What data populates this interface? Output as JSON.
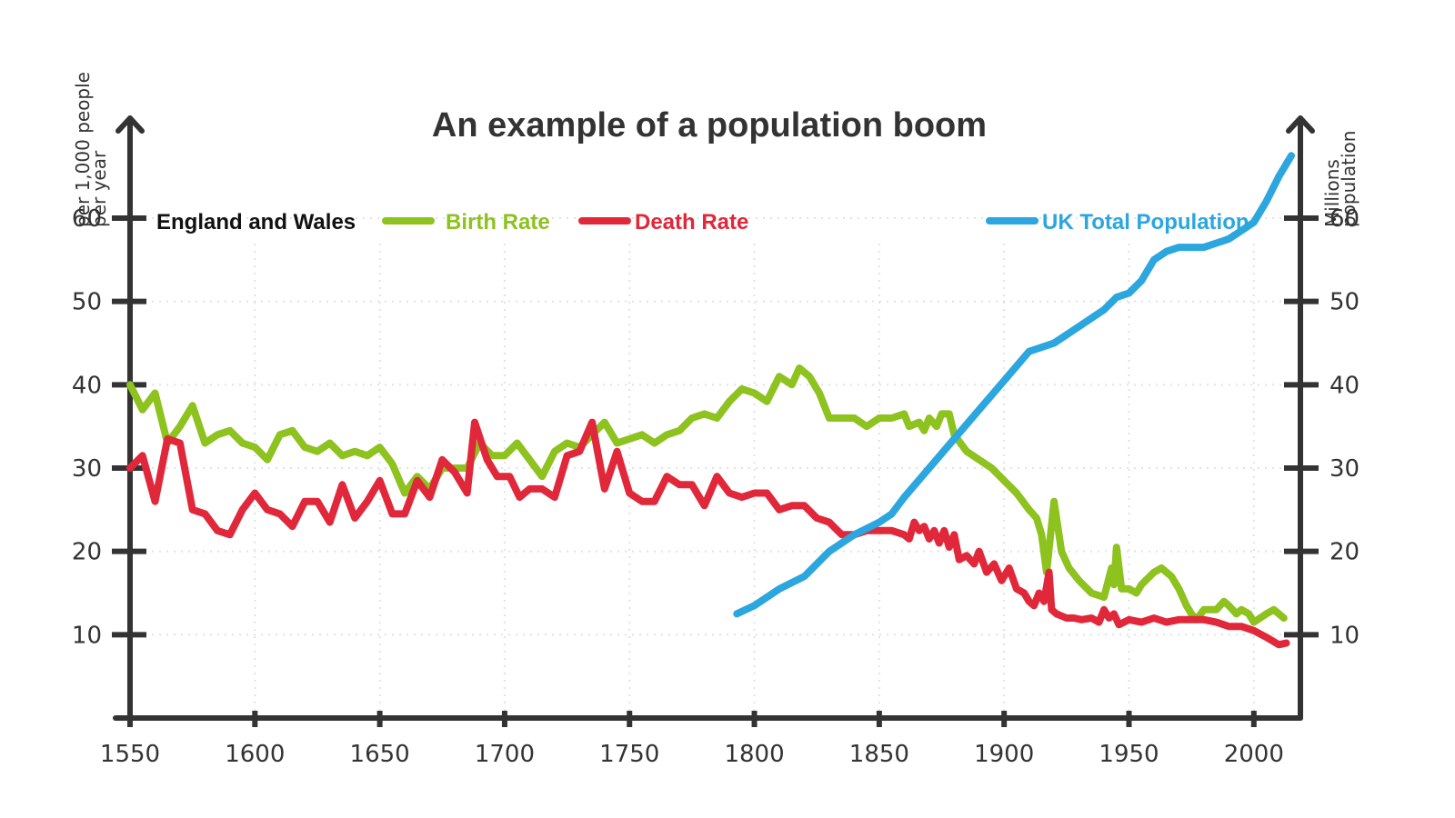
{
  "chart_data": {
    "type": "line",
    "title": "An example of a population boom",
    "xlabel": "",
    "ylabel_left": [
      "per 1,000 people",
      "per year"
    ],
    "ylabel_right": [
      "Millions",
      "population"
    ],
    "xlim": [
      1550,
      2015
    ],
    "ylim_left": [
      0,
      72
    ],
    "ylim_right": [
      0,
      72
    ],
    "x_ticks": [
      1550,
      1600,
      1650,
      1700,
      1750,
      1800,
      1850,
      1900,
      1950,
      2000
    ],
    "y_ticks_left": [
      10,
      20,
      30,
      40,
      50,
      60
    ],
    "y_ticks_right": [
      10,
      20,
      30,
      40,
      50,
      60
    ],
    "grid": true,
    "legend_group_label": "England and Wales",
    "series": [
      {
        "name": "Birth Rate",
        "axis": "left",
        "color": "#8dc21f",
        "points": [
          [
            1550,
            40
          ],
          [
            1555,
            37
          ],
          [
            1560,
            39
          ],
          [
            1565,
            33
          ],
          [
            1570,
            35
          ],
          [
            1575,
            37.5
          ],
          [
            1580,
            33
          ],
          [
            1585,
            34
          ],
          [
            1590,
            34.5
          ],
          [
            1595,
            33
          ],
          [
            1600,
            32.5
          ],
          [
            1605,
            31
          ],
          [
            1610,
            34
          ],
          [
            1615,
            34.5
          ],
          [
            1620,
            32.5
          ],
          [
            1625,
            32
          ],
          [
            1630,
            33
          ],
          [
            1635,
            31.5
          ],
          [
            1640,
            32
          ],
          [
            1645,
            31.5
          ],
          [
            1650,
            32.5
          ],
          [
            1655,
            30.5
          ],
          [
            1660,
            27
          ],
          [
            1665,
            29
          ],
          [
            1670,
            27.5
          ],
          [
            1675,
            30
          ],
          [
            1680,
            30
          ],
          [
            1685,
            30
          ],
          [
            1690,
            33
          ],
          [
            1695,
            31.5
          ],
          [
            1700,
            31.5
          ],
          [
            1705,
            33
          ],
          [
            1710,
            31
          ],
          [
            1715,
            29
          ],
          [
            1720,
            32
          ],
          [
            1725,
            33
          ],
          [
            1730,
            32.5
          ],
          [
            1735,
            34
          ],
          [
            1740,
            35.5
          ],
          [
            1745,
            33
          ],
          [
            1750,
            33.5
          ],
          [
            1755,
            34
          ],
          [
            1760,
            33
          ],
          [
            1765,
            34
          ],
          [
            1770,
            34.5
          ],
          [
            1775,
            36
          ],
          [
            1780,
            36.5
          ],
          [
            1785,
            36
          ],
          [
            1790,
            38
          ],
          [
            1795,
            39.5
          ],
          [
            1800,
            39
          ],
          [
            1805,
            38
          ],
          [
            1810,
            41
          ],
          [
            1815,
            40
          ],
          [
            1818,
            42
          ],
          [
            1822,
            41
          ],
          [
            1826,
            39
          ],
          [
            1830,
            36
          ],
          [
            1835,
            36
          ],
          [
            1840,
            36
          ],
          [
            1845,
            35
          ],
          [
            1850,
            36
          ],
          [
            1855,
            36
          ],
          [
            1860,
            36.5
          ],
          [
            1862,
            35
          ],
          [
            1866,
            35.5
          ],
          [
            1868,
            34.5
          ],
          [
            1870,
            36
          ],
          [
            1873,
            35
          ],
          [
            1875,
            36.5
          ],
          [
            1878,
            36.5
          ],
          [
            1880,
            34
          ],
          [
            1885,
            32
          ],
          [
            1890,
            31
          ],
          [
            1895,
            30
          ],
          [
            1900,
            28.5
          ],
          [
            1905,
            27
          ],
          [
            1910,
            25
          ],
          [
            1913,
            24
          ],
          [
            1915,
            22
          ],
          [
            1917,
            17.5
          ],
          [
            1920,
            26
          ],
          [
            1923,
            20
          ],
          [
            1926,
            18
          ],
          [
            1930,
            16.5
          ],
          [
            1935,
            15
          ],
          [
            1940,
            14.5
          ],
          [
            1943,
            18
          ],
          [
            1944,
            16
          ],
          [
            1945,
            20.5
          ],
          [
            1947,
            15.5
          ],
          [
            1950,
            15.5
          ],
          [
            1953,
            15
          ],
          [
            1955,
            16
          ],
          [
            1960,
            17.5
          ],
          [
            1963,
            18
          ],
          [
            1967,
            17
          ],
          [
            1970,
            15.5
          ],
          [
            1973,
            13.5
          ],
          [
            1975,
            12.5
          ],
          [
            1977,
            11.8
          ],
          [
            1980,
            13
          ],
          [
            1985,
            13
          ],
          [
            1988,
            14
          ],
          [
            1990,
            13.5
          ],
          [
            1993,
            12.5
          ],
          [
            1995,
            13
          ],
          [
            1998,
            12.5
          ],
          [
            2000,
            11.5
          ],
          [
            2005,
            12.5
          ],
          [
            2008,
            13
          ],
          [
            2012,
            12
          ]
        ]
      },
      {
        "name": "Death Rate",
        "axis": "left",
        "color": "#e0283a",
        "points": [
          [
            1550,
            30
          ],
          [
            1555,
            31.5
          ],
          [
            1560,
            26
          ],
          [
            1565,
            33.5
          ],
          [
            1570,
            33
          ],
          [
            1575,
            25
          ],
          [
            1580,
            24.5
          ],
          [
            1585,
            22.5
          ],
          [
            1590,
            22
          ],
          [
            1595,
            25
          ],
          [
            1600,
            27
          ],
          [
            1605,
            25
          ],
          [
            1610,
            24.5
          ],
          [
            1615,
            23
          ],
          [
            1620,
            26
          ],
          [
            1625,
            26
          ],
          [
            1630,
            23.5
          ],
          [
            1635,
            28
          ],
          [
            1640,
            24
          ],
          [
            1645,
            26
          ],
          [
            1650,
            28.5
          ],
          [
            1655,
            24.5
          ],
          [
            1660,
            24.5
          ],
          [
            1665,
            28.5
          ],
          [
            1670,
            26.5
          ],
          [
            1675,
            31
          ],
          [
            1680,
            29.5
          ],
          [
            1685,
            27
          ],
          [
            1688,
            35.5
          ],
          [
            1693,
            31
          ],
          [
            1697,
            29
          ],
          [
            1702,
            29
          ],
          [
            1706,
            26.5
          ],
          [
            1710,
            27.5
          ],
          [
            1715,
            27.5
          ],
          [
            1720,
            26.5
          ],
          [
            1725,
            31.5
          ],
          [
            1730,
            32
          ],
          [
            1735,
            35.5
          ],
          [
            1740,
            27.5
          ],
          [
            1745,
            32
          ],
          [
            1750,
            27
          ],
          [
            1755,
            26
          ],
          [
            1760,
            26
          ],
          [
            1765,
            29
          ],
          [
            1770,
            28
          ],
          [
            1775,
            28
          ],
          [
            1780,
            25.5
          ],
          [
            1785,
            29
          ],
          [
            1790,
            27
          ],
          [
            1795,
            26.5
          ],
          [
            1800,
            27
          ],
          [
            1805,
            27
          ],
          [
            1810,
            25
          ],
          [
            1815,
            25.5
          ],
          [
            1820,
            25.5
          ],
          [
            1825,
            24
          ],
          [
            1830,
            23.5
          ],
          [
            1835,
            22
          ],
          [
            1840,
            22
          ],
          [
            1845,
            22.5
          ],
          [
            1850,
            22.5
          ],
          [
            1855,
            22.5
          ],
          [
            1860,
            22
          ],
          [
            1862,
            21.5
          ],
          [
            1864,
            23.5
          ],
          [
            1866,
            22.5
          ],
          [
            1868,
            23
          ],
          [
            1870,
            21.5
          ],
          [
            1872,
            22.5
          ],
          [
            1874,
            21
          ],
          [
            1876,
            22.5
          ],
          [
            1878,
            20.5
          ],
          [
            1880,
            22
          ],
          [
            1882,
            19
          ],
          [
            1885,
            19.5
          ],
          [
            1888,
            18.5
          ],
          [
            1890,
            20
          ],
          [
            1893,
            17.5
          ],
          [
            1896,
            18.5
          ],
          [
            1899,
            16.5
          ],
          [
            1902,
            18
          ],
          [
            1905,
            15.5
          ],
          [
            1908,
            15
          ],
          [
            1910,
            14
          ],
          [
            1912,
            13.5
          ],
          [
            1914,
            15
          ],
          [
            1916,
            14
          ],
          [
            1918,
            17.5
          ],
          [
            1919,
            13
          ],
          [
            1921,
            12.5
          ],
          [
            1925,
            12
          ],
          [
            1928,
            12
          ],
          [
            1931,
            11.8
          ],
          [
            1935,
            12
          ],
          [
            1938,
            11.5
          ],
          [
            1940,
            13
          ],
          [
            1942,
            12
          ],
          [
            1944,
            12.5
          ],
          [
            1946,
            11.2
          ],
          [
            1950,
            11.8
          ],
          [
            1955,
            11.5
          ],
          [
            1960,
            12
          ],
          [
            1965,
            11.5
          ],
          [
            1970,
            11.8
          ],
          [
            1975,
            11.8
          ],
          [
            1980,
            11.8
          ],
          [
            1985,
            11.5
          ],
          [
            1990,
            11
          ],
          [
            1995,
            11
          ],
          [
            2000,
            10.5
          ],
          [
            2005,
            9.7
          ],
          [
            2010,
            8.8
          ],
          [
            2013,
            9
          ]
        ]
      },
      {
        "name": "UK Total Population",
        "axis": "right",
        "color": "#2ba6de",
        "points": [
          [
            1793,
            12.5
          ],
          [
            1800,
            13.5
          ],
          [
            1810,
            15.5
          ],
          [
            1820,
            17
          ],
          [
            1830,
            20
          ],
          [
            1840,
            22
          ],
          [
            1850,
            23.5
          ],
          [
            1855,
            24.5
          ],
          [
            1860,
            26.5
          ],
          [
            1870,
            30
          ],
          [
            1880,
            33.5
          ],
          [
            1890,
            37
          ],
          [
            1900,
            40.5
          ],
          [
            1910,
            44
          ],
          [
            1915,
            44.5
          ],
          [
            1920,
            45
          ],
          [
            1930,
            47
          ],
          [
            1940,
            49
          ],
          [
            1945,
            50.5
          ],
          [
            1950,
            51
          ],
          [
            1955,
            52.5
          ],
          [
            1960,
            55
          ],
          [
            1965,
            56
          ],
          [
            1970,
            56.5
          ],
          [
            1975,
            56.5
          ],
          [
            1980,
            56.5
          ],
          [
            1985,
            57
          ],
          [
            1990,
            57.5
          ],
          [
            1995,
            58.5
          ],
          [
            2000,
            59.5
          ],
          [
            2005,
            62
          ],
          [
            2010,
            65
          ],
          [
            2015,
            67.5
          ]
        ]
      }
    ]
  }
}
